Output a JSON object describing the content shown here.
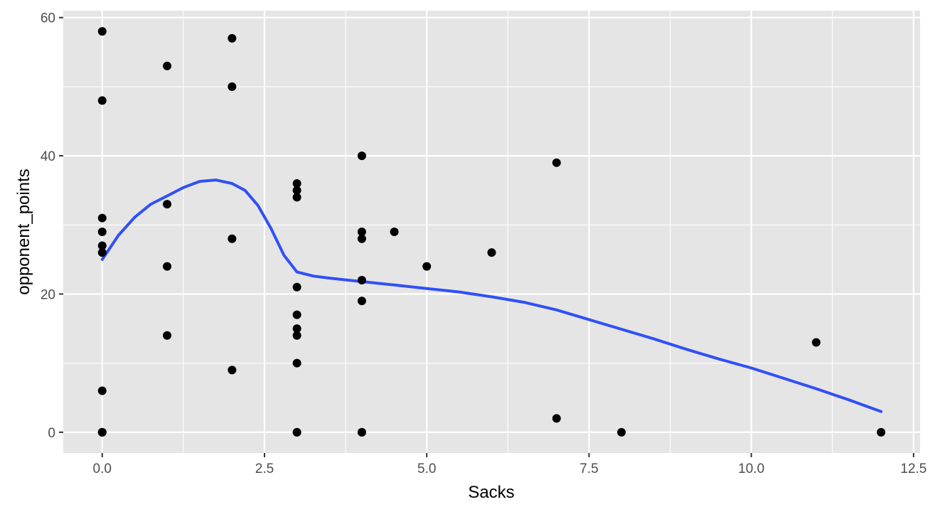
{
  "chart_data": {
    "type": "scatter",
    "title": "",
    "xlabel": "Sacks",
    "ylabel": "opponent_points",
    "xlim": [
      -0.6,
      12.6
    ],
    "ylim": [
      -3,
      61
    ],
    "x_ticks": [
      0,
      2.5,
      5,
      7.5,
      10,
      12.5
    ],
    "x_tick_labels": [
      "0.0",
      "2.5",
      "5.0",
      "7.5",
      "10.0",
      "12.5"
    ],
    "y_ticks": [
      0,
      20,
      40,
      60
    ],
    "y_tick_labels": [
      "0",
      "20",
      "40",
      "60"
    ],
    "grid": true,
    "legend": "none",
    "colors": {
      "panel": "#e5e5e5",
      "grid": "#ffffff",
      "points": "#000000",
      "smooth": "#3050f8",
      "tick_text": "#4d4d4d"
    },
    "series": [
      {
        "kind": "points",
        "x": [
          0,
          0,
          0,
          0,
          0,
          0,
          0,
          0,
          0,
          0,
          1,
          1,
          1,
          1,
          2,
          2,
          2,
          2,
          3,
          3,
          3,
          3,
          3,
          3,
          3,
          3,
          3,
          3,
          4,
          4,
          4,
          4,
          4,
          4,
          4,
          4.5,
          5,
          6,
          7,
          7,
          8,
          11,
          12
        ],
        "y": [
          58,
          48,
          31,
          29,
          27,
          26,
          6,
          0,
          0,
          0,
          53,
          33,
          24,
          14,
          57,
          50,
          28,
          9,
          36,
          35,
          34,
          21,
          17,
          15,
          14,
          10,
          0,
          0,
          40,
          29,
          28,
          22,
          19,
          0,
          0,
          29,
          24,
          26,
          39,
          2,
          0,
          13,
          0
        ]
      },
      {
        "kind": "smooth",
        "x": [
          0,
          0.25,
          0.5,
          0.75,
          1,
          1.25,
          1.5,
          1.75,
          2,
          2.2,
          2.4,
          2.6,
          2.8,
          3,
          3.25,
          3.5,
          4,
          4.5,
          5,
          5.5,
          6,
          6.5,
          7,
          7.5,
          8,
          8.5,
          9,
          9.5,
          10,
          10.5,
          11,
          11.5,
          12
        ],
        "y": [
          25,
          28.5,
          31.1,
          33,
          34.2,
          35.4,
          36.3,
          36.5,
          36,
          35,
          32.8,
          29.5,
          25.6,
          23.2,
          22.6,
          22.3,
          21.8,
          21.3,
          20.8,
          20.3,
          19.6,
          18.8,
          17.7,
          16.3,
          14.9,
          13.5,
          12.0,
          10.6,
          9.3,
          7.8,
          6.3,
          4.7,
          3.0
        ]
      }
    ]
  }
}
